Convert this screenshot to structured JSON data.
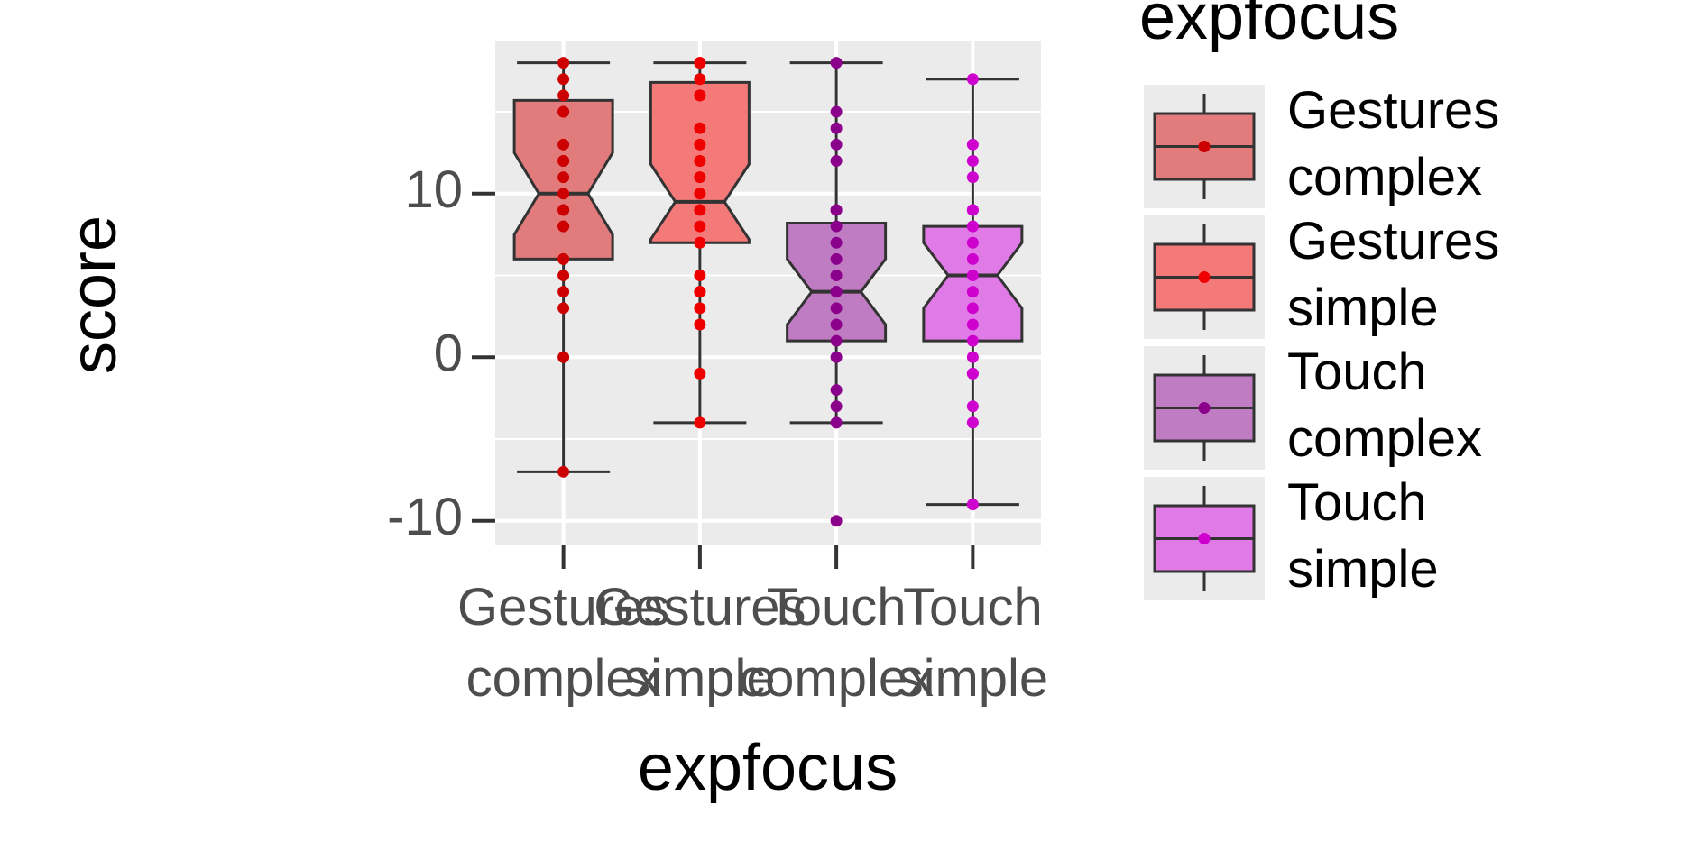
{
  "chart_data": {
    "type": "boxplot",
    "x_label": "expfocus",
    "y_label": "score",
    "legend_title": "expfocus",
    "categories": [
      "Gestures\ncomplex",
      "Gestures\nsimple",
      "Touch\ncomplex",
      "Touch\nsimple"
    ],
    "ylim": [
      -11.5,
      19.3
    ],
    "yticks": [
      -10,
      0,
      10
    ],
    "minor_gridlines": [
      -5,
      5,
      15
    ],
    "grid": true,
    "series": [
      {
        "name": "Gestures\ncomplex",
        "color": "#e27c7c",
        "point_color": "#cc0000",
        "whisker_low": -7,
        "q1": 6,
        "median": 10,
        "q3": 15.7,
        "whisker_high": 18,
        "notch_low": 7.5,
        "notch_high": 12.5,
        "points": [
          18,
          17,
          16,
          15,
          15,
          13,
          12,
          12,
          11,
          10,
          9,
          9,
          8,
          8,
          6,
          6,
          5,
          4,
          3,
          0,
          -7
        ]
      },
      {
        "name": "Gestures\nsimple",
        "color": "#f47a7a",
        "point_color": "#ee0000",
        "whisker_low": -4,
        "q1": 7,
        "median": 9.5,
        "q3": 16.8,
        "whisker_high": 18,
        "notch_low": 7.2,
        "notch_high": 11.8,
        "points": [
          18,
          18,
          17,
          16,
          16,
          14,
          13,
          12,
          11,
          10,
          9,
          8,
          7,
          5,
          4,
          4,
          3,
          2,
          -1,
          -4
        ]
      },
      {
        "name": "Touch\ncomplex",
        "color": "#c07cc3",
        "point_color": "#8b008b",
        "whisker_low": -4,
        "q1": 1,
        "median": 4,
        "q3": 8.2,
        "whisker_high": 18,
        "notch_low": 2,
        "notch_high": 6,
        "points": [
          18,
          15,
          14,
          13,
          12,
          9,
          9,
          8,
          7,
          6,
          5,
          4,
          4,
          3,
          2,
          1,
          0,
          -2,
          -3,
          -4,
          -10
        ]
      },
      {
        "name": "Touch\nsimple",
        "color": "#e07ae6",
        "point_color": "#cd00cd",
        "whisker_low": -9,
        "q1": 1,
        "median": 5,
        "q3": 8,
        "whisker_high": 17,
        "notch_low": 3,
        "notch_high": 7,
        "points": [
          17,
          13,
          12,
          11,
          9,
          9,
          8,
          8,
          7,
          6,
          5,
          4,
          3,
          2,
          1,
          0,
          -1,
          -1,
          -3,
          -4,
          -9
        ]
      }
    ]
  }
}
